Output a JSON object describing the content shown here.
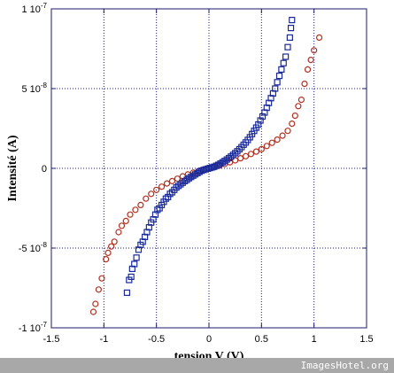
{
  "chart_data": {
    "type": "scatter",
    "title": "",
    "xlabel": "tension V (V)",
    "ylabel": "Intensité (A)",
    "xlim": [
      -1.5,
      1.5
    ],
    "ylim": [
      -1e-07,
      1e-07
    ],
    "x_ticks": [
      {
        "value": -1.5,
        "label": "-1.5"
      },
      {
        "value": -1,
        "label": "-1"
      },
      {
        "value": -0.5,
        "label": "-0.5"
      },
      {
        "value": 0,
        "label": "0"
      },
      {
        "value": 0.5,
        "label": "0.5"
      },
      {
        "value": 1,
        "label": "1"
      },
      {
        "value": 1.5,
        "label": "1.5"
      }
    ],
    "y_ticks": [
      {
        "value": -1e-07,
        "mantissa": "-1 10",
        "exp": "-7"
      },
      {
        "value": -5e-08,
        "mantissa": "-5 10",
        "exp": "-8"
      },
      {
        "value": 0,
        "mantissa": "0",
        "exp": ""
      },
      {
        "value": 5e-08,
        "mantissa": "5 10",
        "exp": "-8"
      },
      {
        "value": 1e-07,
        "mantissa": "1 10",
        "exp": "-7"
      }
    ],
    "grid": true,
    "grid_style": "dotted",
    "series": [
      {
        "marker": "circle",
        "color": "#b03020",
        "points": [
          [
            -1.1,
            -9e-08
          ],
          [
            -1.08,
            -8.5e-08
          ],
          [
            -1.05,
            -7.6e-08
          ],
          [
            -1.02,
            -6.9e-08
          ],
          [
            -0.98,
            -5.7e-08
          ],
          [
            -0.96,
            -5.3e-08
          ],
          [
            -0.93,
            -4.9e-08
          ],
          [
            -0.9,
            -4.6e-08
          ],
          [
            -0.86,
            -4e-08
          ],
          [
            -0.83,
            -3.6e-08
          ],
          [
            -0.79,
            -3.3e-08
          ],
          [
            -0.75,
            -2.9e-08
          ],
          [
            -0.7,
            -2.6e-08
          ],
          [
            -0.65,
            -2.3e-08
          ],
          [
            -0.6,
            -1.9e-08
          ],
          [
            -0.55,
            -1.6e-08
          ],
          [
            -0.5,
            -1.35e-08
          ],
          [
            -0.45,
            -1.15e-08
          ],
          [
            -0.4,
            -9.5e-09
          ],
          [
            -0.35,
            -8e-09
          ],
          [
            -0.3,
            -6.5e-09
          ],
          [
            -0.25,
            -5e-09
          ],
          [
            -0.2,
            -3.8e-09
          ],
          [
            -0.15,
            -2.7e-09
          ],
          [
            -0.1,
            -1.7e-09
          ],
          [
            -0.05,
            -8e-10
          ],
          [
            0.0,
            0.0
          ],
          [
            0.05,
            8e-10
          ],
          [
            0.1,
            1.7e-09
          ],
          [
            0.15,
            2.7e-09
          ],
          [
            0.2,
            3.8e-09
          ],
          [
            0.25,
            5e-09
          ],
          [
            0.3,
            6.3e-09
          ],
          [
            0.35,
            7.6e-09
          ],
          [
            0.4,
            9e-09
          ],
          [
            0.45,
            1.05e-08
          ],
          [
            0.5,
            1.2e-08
          ],
          [
            0.55,
            1.4e-08
          ],
          [
            0.6,
            1.6e-08
          ],
          [
            0.65,
            1.8e-08
          ],
          [
            0.7,
            2.05e-08
          ],
          [
            0.75,
            2.35e-08
          ],
          [
            0.79,
            2.8e-08
          ],
          [
            0.82,
            3.3e-08
          ],
          [
            0.85,
            3.9e-08
          ],
          [
            0.88,
            4.3e-08
          ],
          [
            0.91,
            5.3e-08
          ],
          [
            0.94,
            6.2e-08
          ],
          [
            0.97,
            6.8e-08
          ],
          [
            1.0,
            7.4e-08
          ],
          [
            1.05,
            8.2e-08
          ]
        ]
      },
      {
        "marker": "square",
        "color": "#1a2a9a",
        "points": [
          [
            -0.78,
            -7.8e-08
          ],
          [
            -0.76,
            -7e-08
          ],
          [
            -0.74,
            -6.8e-08
          ],
          [
            -0.73,
            -6.3e-08
          ],
          [
            -0.71,
            -6e-08
          ],
          [
            -0.69,
            -5.6e-08
          ],
          [
            -0.67,
            -5.1e-08
          ],
          [
            -0.65,
            -4.8e-08
          ],
          [
            -0.63,
            -4.6e-08
          ],
          [
            -0.61,
            -4.3e-08
          ],
          [
            -0.59,
            -4e-08
          ],
          [
            -0.57,
            -3.7e-08
          ],
          [
            -0.55,
            -3.4e-08
          ],
          [
            -0.53,
            -3.2e-08
          ],
          [
            -0.51,
            -2.9e-08
          ],
          [
            -0.49,
            -2.6e-08
          ],
          [
            -0.47,
            -2.5e-08
          ],
          [
            -0.45,
            -2.3e-08
          ],
          [
            -0.43,
            -2.1e-08
          ],
          [
            -0.41,
            -1.9e-08
          ],
          [
            -0.39,
            -1.8e-08
          ],
          [
            -0.37,
            -1.6e-08
          ],
          [
            -0.35,
            -1.5e-08
          ],
          [
            -0.33,
            -1.35e-08
          ],
          [
            -0.31,
            -1.2e-08
          ],
          [
            -0.29,
            -1.1e-08
          ],
          [
            -0.27,
            -1e-08
          ],
          [
            -0.25,
            -9e-09
          ],
          [
            -0.23,
            -8e-09
          ],
          [
            -0.21,
            -7.2e-09
          ],
          [
            -0.19,
            -6.2e-09
          ],
          [
            -0.17,
            -5.4e-09
          ],
          [
            -0.15,
            -4.6e-09
          ],
          [
            -0.13,
            -3.8e-09
          ],
          [
            -0.11,
            -3e-09
          ],
          [
            -0.09,
            -2.2e-09
          ],
          [
            -0.07,
            -1.5e-09
          ],
          [
            -0.05,
            -1e-09
          ],
          [
            -0.03,
            -6e-10
          ],
          [
            -0.01,
            -2e-10
          ],
          [
            0.01,
            2e-10
          ],
          [
            0.03,
            6e-10
          ],
          [
            0.05,
            1e-09
          ],
          [
            0.07,
            1.6e-09
          ],
          [
            0.09,
            2.2e-09
          ],
          [
            0.11,
            3e-09
          ],
          [
            0.13,
            3.8e-09
          ],
          [
            0.15,
            4.6e-09
          ],
          [
            0.17,
            5.5e-09
          ],
          [
            0.19,
            6.4e-09
          ],
          [
            0.21,
            7.4e-09
          ],
          [
            0.23,
            8.4e-09
          ],
          [
            0.25,
            9.5e-09
          ],
          [
            0.27,
            1.07e-08
          ],
          [
            0.29,
            1.2e-08
          ],
          [
            0.31,
            1.33e-08
          ],
          [
            0.33,
            1.48e-08
          ],
          [
            0.35,
            1.62e-08
          ],
          [
            0.37,
            1.78e-08
          ],
          [
            0.39,
            1.95e-08
          ],
          [
            0.41,
            2.15e-08
          ],
          [
            0.43,
            2.35e-08
          ],
          [
            0.45,
            2.55e-08
          ],
          [
            0.47,
            2.75e-08
          ],
          [
            0.49,
            3e-08
          ],
          [
            0.51,
            3.25e-08
          ],
          [
            0.53,
            3.5e-08
          ],
          [
            0.55,
            3.8e-08
          ],
          [
            0.57,
            4.1e-08
          ],
          [
            0.59,
            4.4e-08
          ],
          [
            0.61,
            4.7e-08
          ],
          [
            0.63,
            5e-08
          ],
          [
            0.65,
            5.4e-08
          ],
          [
            0.67,
            5.8e-08
          ],
          [
            0.69,
            6.2e-08
          ],
          [
            0.71,
            6.6e-08
          ],
          [
            0.73,
            7e-08
          ],
          [
            0.75,
            7.6e-08
          ],
          [
            0.77,
            8.2e-08
          ],
          [
            0.78,
            8.8e-08
          ],
          [
            0.79,
            9.3e-08
          ]
        ]
      }
    ]
  },
  "watermark": "ImagesHotel.org"
}
